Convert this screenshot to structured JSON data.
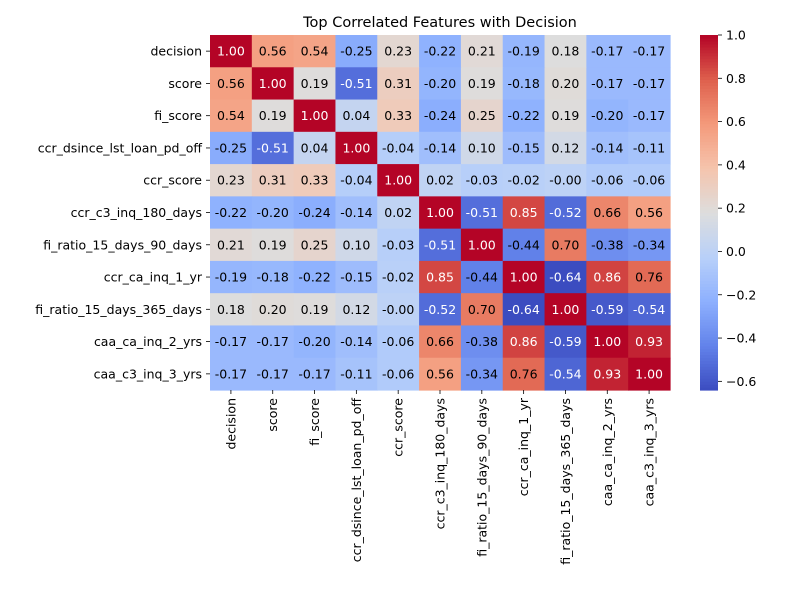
{
  "chart_data": {
    "type": "heatmap",
    "title": "Top Correlated Features with Decision",
    "rows": [
      "decision",
      "score",
      "fi_score",
      "ccr_dsince_lst_loan_pd_off",
      "ccr_score",
      "ccr_c3_inq_180_days",
      "fi_ratio_15_days_90_days",
      "ccr_ca_inq_1_yr",
      "fi_ratio_15_days_365_days",
      "caa_ca_inq_2_yrs",
      "caa_c3_inq_3_yrs"
    ],
    "columns": [
      "decision",
      "score",
      "fi_score",
      "ccr_dsince_lst_loan_pd_off",
      "ccr_score",
      "ccr_c3_inq_180_days",
      "fi_ratio_15_days_90_days",
      "ccr_ca_inq_1_yr",
      "fi_ratio_15_days_365_days",
      "caa_ca_inq_2_yrs",
      "caa_c3_inq_3_yrs"
    ],
    "values": [
      [
        1.0,
        0.56,
        0.54,
        -0.25,
        0.23,
        -0.22,
        0.21,
        -0.19,
        0.18,
        -0.17,
        -0.17
      ],
      [
        0.56,
        1.0,
        0.19,
        -0.51,
        0.31,
        -0.2,
        0.19,
        -0.18,
        0.2,
        -0.17,
        -0.17
      ],
      [
        0.54,
        0.19,
        1.0,
        0.04,
        0.33,
        -0.24,
        0.25,
        -0.22,
        0.19,
        -0.2,
        -0.17
      ],
      [
        -0.25,
        -0.51,
        0.04,
        1.0,
        -0.04,
        -0.14,
        0.1,
        -0.15,
        0.12,
        -0.14,
        -0.11
      ],
      [
        0.23,
        0.31,
        0.33,
        -0.04,
        1.0,
        0.02,
        -0.03,
        -0.02,
        -0.0,
        -0.06,
        -0.06
      ],
      [
        -0.22,
        -0.2,
        -0.24,
        -0.14,
        0.02,
        1.0,
        -0.51,
        0.85,
        -0.52,
        0.66,
        0.56
      ],
      [
        0.21,
        0.19,
        0.25,
        0.1,
        -0.03,
        -0.51,
        1.0,
        -0.44,
        0.7,
        -0.38,
        -0.34
      ],
      [
        -0.19,
        -0.18,
        -0.22,
        -0.15,
        -0.02,
        0.85,
        -0.44,
        1.0,
        -0.64,
        0.86,
        0.76
      ],
      [
        0.18,
        0.2,
        0.19,
        0.12,
        -0.0,
        -0.52,
        0.7,
        -0.64,
        1.0,
        -0.59,
        -0.54
      ],
      [
        -0.17,
        -0.17,
        -0.2,
        -0.14,
        -0.06,
        0.66,
        -0.38,
        0.86,
        -0.59,
        1.0,
        0.93
      ],
      [
        -0.17,
        -0.17,
        -0.17,
        -0.11,
        -0.06,
        0.56,
        -0.34,
        0.76,
        -0.54,
        0.93,
        1.0
      ]
    ],
    "colormap": "coolwarm",
    "vmin": -0.64,
    "vmax": 1.0,
    "annotation_format": "2 decimals",
    "colorbar": {
      "ticks": [
        -0.6,
        -0.4,
        -0.2,
        0.0,
        0.2,
        0.4,
        0.6,
        0.8,
        1.0
      ],
      "tick_labels": [
        "−0.6",
        "−0.4",
        "−0.2",
        "0.0",
        "0.2",
        "0.4",
        "0.6",
        "0.8",
        "1.0"
      ],
      "placement": "right"
    },
    "grid": false
  }
}
